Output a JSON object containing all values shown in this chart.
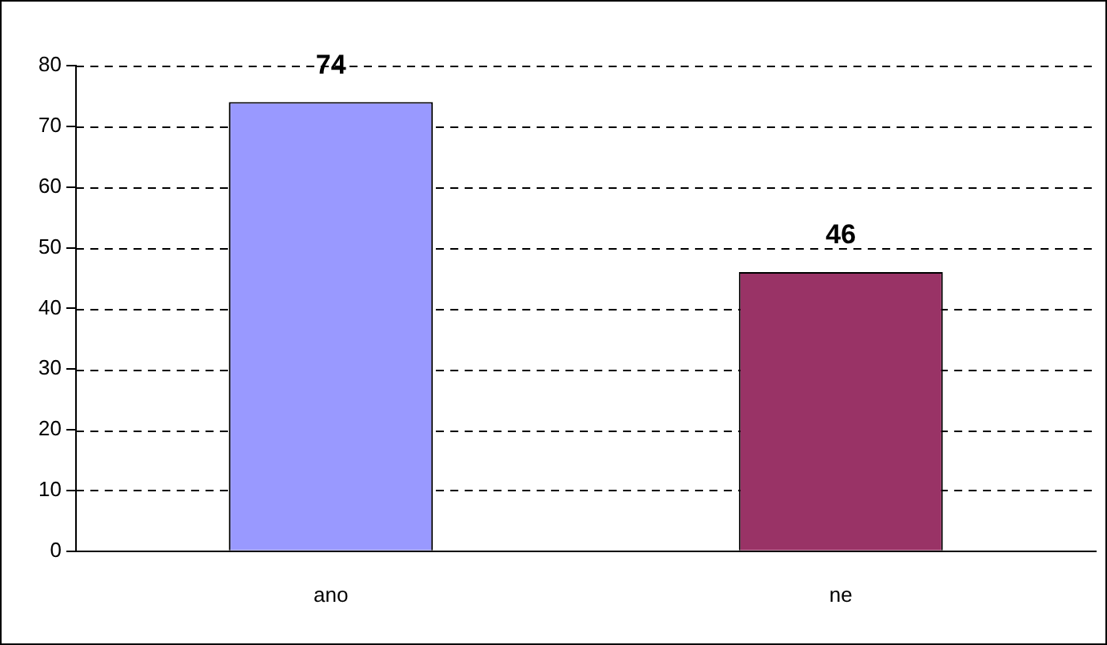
{
  "chart_data": {
    "type": "bar",
    "categories": [
      "ano",
      "ne"
    ],
    "values": [
      74,
      46
    ],
    "colors": [
      "#9999ff",
      "#993366"
    ],
    "ylim": [
      0,
      80
    ],
    "yticks": [
      0,
      10,
      20,
      30,
      40,
      50,
      60,
      70,
      80
    ],
    "grid": "y",
    "data_labels": true,
    "legend": false
  }
}
